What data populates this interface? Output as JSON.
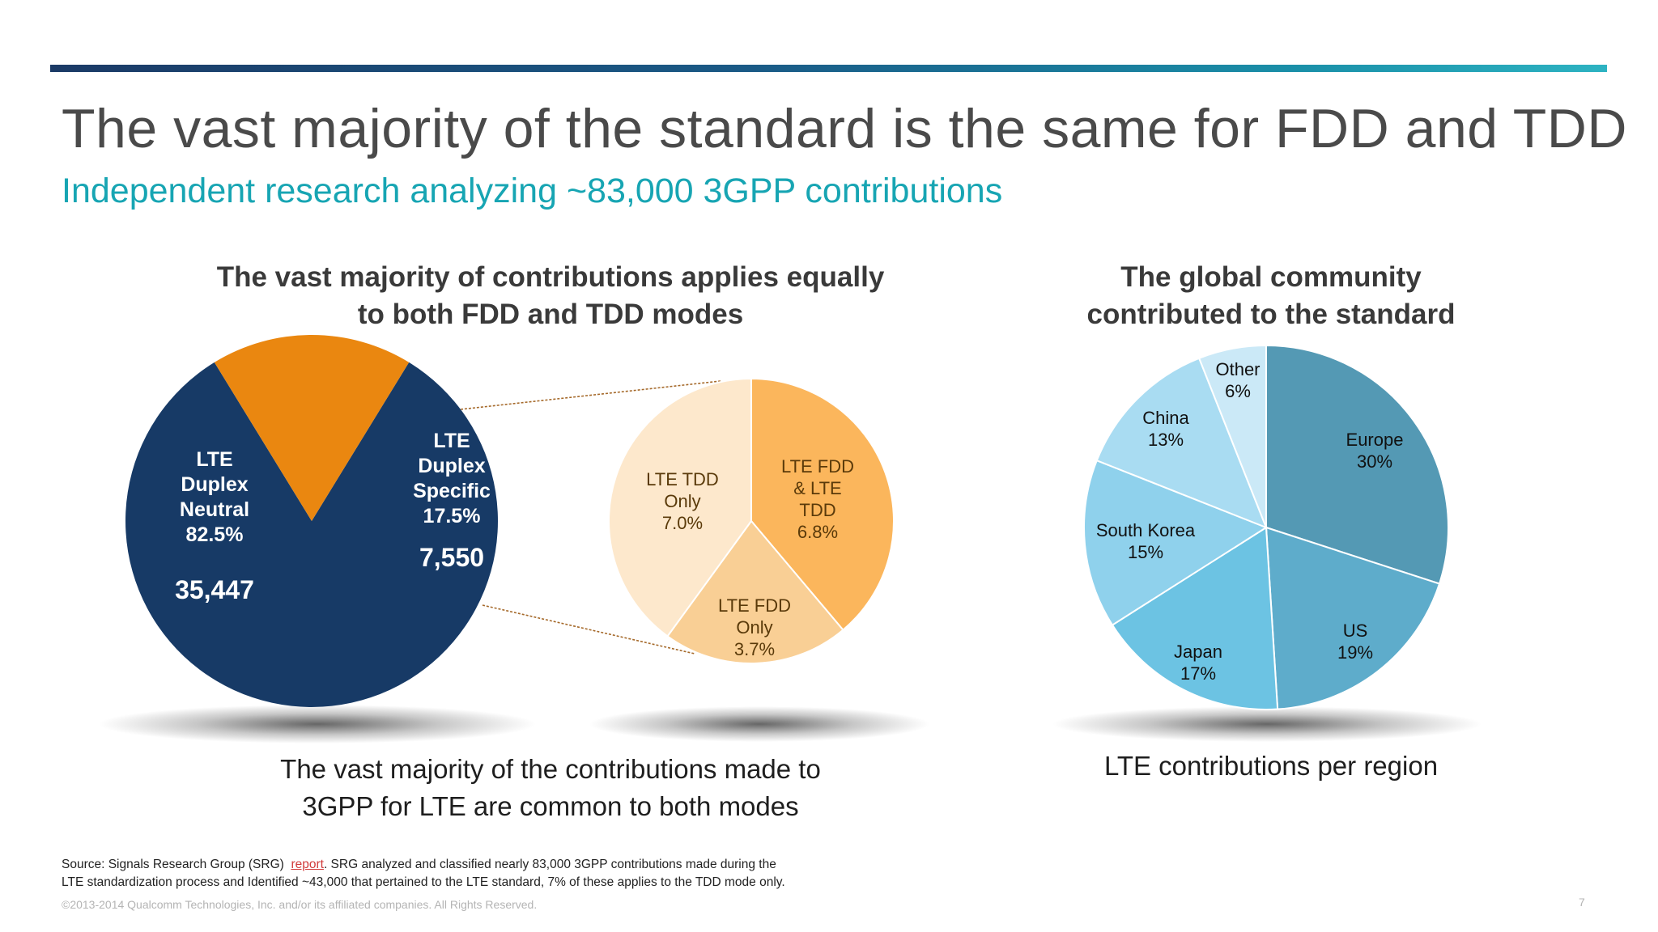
{
  "slide": {
    "title": "The vast majority of the standard is the same for FDD and TDD",
    "subtitle": "Independent research analyzing ~83,000 3GPP contributions",
    "left_heading": [
      "The vast majority of contributions applies equally",
      "to both FDD and TDD modes"
    ],
    "left_caption": [
      "The vast majority of the contributions made to",
      "3GPP for LTE are common to both modes"
    ],
    "right_heading": [
      "The global community",
      "contributed to the standard"
    ],
    "right_caption": "LTE contributions per region",
    "source": {
      "prefix": "Source: Signals Research Group (SRG)",
      "link": "report",
      "line1_rest": ". SRG analyzed and classified nearly 83,000 3GPP contributions made during the",
      "line2": "LTE standardization process and Identified ~43,000 that pertained to the LTE standard, 7% of these applies to the TDD mode only."
    },
    "copyright": "©2013-2014 Qualcomm Technologies, Inc. and/or its affiliated companies. All Rights Reserved.",
    "page_number": "7"
  },
  "chart_data": [
    {
      "type": "pie",
      "name": "duplex",
      "slices": [
        {
          "label": [
            "LTE",
            "Duplex",
            "Neutral",
            "82.5%"
          ],
          "value": 82.5,
          "count": "35,447",
          "color": "#173a66"
        },
        {
          "label": [
            "LTE",
            "Duplex",
            "Specific",
            "17.5%"
          ],
          "value": 17.5,
          "count": "7,550",
          "color": "#ea8710"
        }
      ]
    },
    {
      "type": "pie",
      "name": "duplex-specific-breakdown",
      "slices": [
        {
          "label": [
            "LTE FDD",
            "& LTE",
            "TDD",
            "6.8%"
          ],
          "value": 6.8,
          "color": "#fbb65c"
        },
        {
          "label": [
            "LTE FDD",
            "Only",
            "3.7%"
          ],
          "value": 3.7,
          "color": "#f9cf95"
        },
        {
          "label": [
            "LTE TDD",
            "Only",
            "7.0%"
          ],
          "value": 7.0,
          "color": "#fde8cc"
        }
      ]
    },
    {
      "type": "pie",
      "name": "region",
      "slices": [
        {
          "label": [
            "Europe",
            "30%"
          ],
          "value": 30,
          "color": "#5499b4"
        },
        {
          "label": [
            "US",
            "19%"
          ],
          "value": 19,
          "color": "#5eaccb"
        },
        {
          "label": [
            "Japan",
            "17%"
          ],
          "value": 17,
          "color": "#6cc3e3"
        },
        {
          "label": [
            "South Korea",
            "15%"
          ],
          "value": 15,
          "color": "#8fd1ec"
        },
        {
          "label": [
            "China",
            "13%"
          ],
          "value": 13,
          "color": "#a9dcf2"
        },
        {
          "label": [
            "Other",
            "6%"
          ],
          "value": 6,
          "color": "#cbe9f7"
        }
      ]
    }
  ]
}
